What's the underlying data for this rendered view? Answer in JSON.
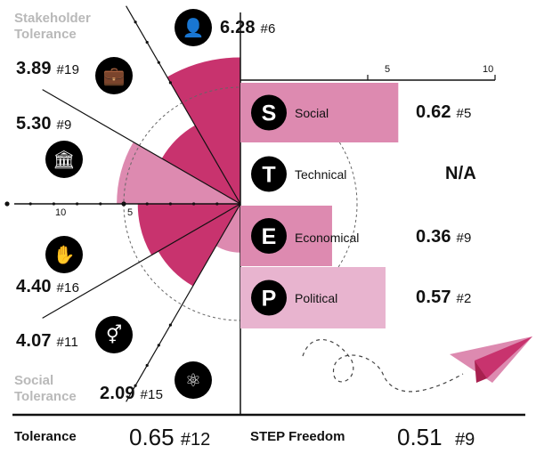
{
  "colors": {
    "magenta": "#c8336e",
    "magenta_light": "#dd8ab0",
    "bar_light": "#e8b4cf",
    "black": "#000000",
    "grey": "#b9b9b9"
  },
  "headings": {
    "stakeholder_tolerance": "Stakeholder Tolerance",
    "social_tolerance": "Social Tolerance"
  },
  "chart_data": [
    {
      "type": "pie",
      "description_kind": "polar-area",
      "radial_axis": {
        "ticks": [
          "10",
          "5"
        ],
        "range": [
          0,
          10
        ]
      },
      "categories": [
        {
          "icon": "person-icon",
          "value": 6.28,
          "label": "6.28",
          "rank": "#6",
          "color": "#c8336e"
        },
        {
          "icon": "briefcase-icon",
          "value": 3.89,
          "label": "3.89",
          "rank": "#19",
          "color": "#c8336e"
        },
        {
          "icon": "bank-icon",
          "value": 5.3,
          "label": "5.30",
          "rank": "#9",
          "color": "#dd8ab0"
        },
        {
          "icon": "hand-eye-icon",
          "value": 4.4,
          "label": "4.40",
          "rank": "#16",
          "color": "#c8336e"
        },
        {
          "icon": "gender-icon",
          "value": 4.07,
          "label": "4.07",
          "rank": "#11",
          "color": "#c8336e"
        },
        {
          "icon": "atom-icon",
          "value": 2.09,
          "label": "2.09",
          "rank": "#15",
          "color": "#dd8ab0"
        }
      ]
    },
    {
      "type": "bar",
      "orientation": "horizontal",
      "xlim": [
        0,
        10
      ],
      "x_ticks": [
        "5",
        "10"
      ],
      "categories": [
        {
          "letter": "S",
          "name": "Social",
          "value": 0.62,
          "value_label": "0.62",
          "rank": "#5",
          "color": "#dd8ab0"
        },
        {
          "letter": "T",
          "name": "Technical",
          "value": null,
          "value_label": "N/A",
          "rank": "",
          "color": "#dd8ab0"
        },
        {
          "letter": "E",
          "name": "Economical",
          "value": 0.36,
          "value_label": "0.36",
          "rank": "#9",
          "color": "#dd8ab0"
        },
        {
          "letter": "P",
          "name": "Political",
          "value": 0.57,
          "value_label": "0.57",
          "rank": "#2",
          "color": "#e8b4cf"
        }
      ]
    }
  ],
  "footer": {
    "tolerance_label": "Tolerance",
    "tolerance_value": "0.65",
    "tolerance_rank": "#12",
    "step_label": "STEP Freedom",
    "step_value": "0.51",
    "step_rank": "#9"
  }
}
